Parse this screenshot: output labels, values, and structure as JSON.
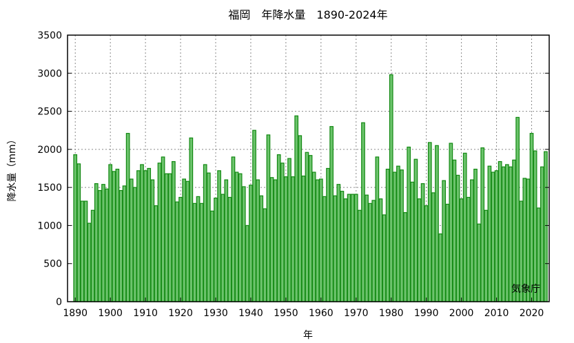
{
  "chart_data": {
    "type": "bar",
    "title": "福岡　年降水量　1890-2024年",
    "xlabel": "年",
    "ylabel": "降水量（mm）",
    "source_label": "気象庁",
    "xlim": [
      1887.8,
      2025
    ],
    "ylim": [
      0,
      3500
    ],
    "yticks": [
      0,
      500,
      1000,
      1500,
      2000,
      2500,
      3000,
      3500
    ],
    "xticks": [
      1890,
      1900,
      1910,
      1920,
      1930,
      1940,
      1950,
      1960,
      1970,
      1980,
      1990,
      2000,
      2010,
      2020
    ],
    "grid": true,
    "colors": {
      "bar_fill": "#6cc36c",
      "bar_stroke": "#118811"
    },
    "start_year": 1890,
    "values": [
      1930,
      1810,
      1320,
      1320,
      1030,
      1200,
      1550,
      1460,
      1540,
      1480,
      1800,
      1710,
      1740,
      1460,
      1520,
      2210,
      1610,
      1500,
      1720,
      1800,
      1720,
      1750,
      1600,
      1260,
      1820,
      1900,
      1680,
      1680,
      1840,
      1310,
      1370,
      1610,
      1580,
      2150,
      1290,
      1380,
      1290,
      1800,
      1690,
      1190,
      1360,
      1720,
      1410,
      1600,
      1370,
      1900,
      1700,
      1680,
      1510,
      1000,
      1530,
      2250,
      1600,
      1390,
      1220,
      2190,
      1630,
      1600,
      1930,
      1820,
      1640,
      1880,
      1640,
      2440,
      2180,
      1650,
      1960,
      1920,
      1700,
      1600,
      1610,
      1380,
      1750,
      2300,
      1390,
      1540,
      1450,
      1350,
      1410,
      1410,
      1410,
      1200,
      2350,
      1400,
      1290,
      1330,
      1900,
      1350,
      1140,
      1740,
      2980,
      1700,
      1780,
      1730,
      1170,
      2030,
      1570,
      1870,
      1350,
      1550,
      1260,
      2090,
      1430,
      2050,
      890,
      1590,
      1280,
      2080,
      1860,
      1660,
      1350,
      1950,
      1370,
      1600,
      1740,
      1020,
      2020,
      1200,
      1780,
      1700,
      1720,
      1840,
      1770,
      1800,
      1770,
      1860,
      2420,
      1320,
      1620,
      1610,
      2210,
      1980,
      1230,
      1770,
      1970
    ]
  }
}
